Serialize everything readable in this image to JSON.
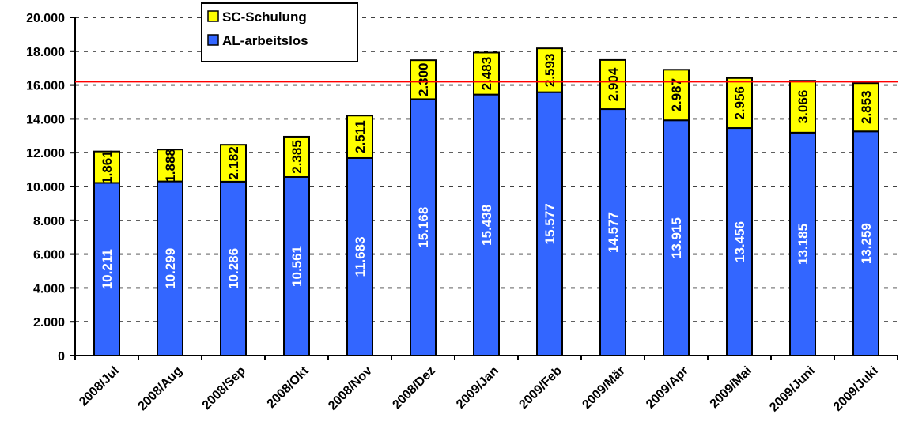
{
  "chart_data": {
    "type": "bar",
    "stacked": true,
    "categories": [
      "2008/Jul",
      "2008/Aug",
      "2008/Sep",
      "2008/Okt",
      "2008/Nov",
      "2008/Dez",
      "2009/Jan",
      "2009/Feb",
      "2009/Mär",
      "2009/Apr",
      "2009/Mai",
      "2009/Juni",
      "2009/Juki"
    ],
    "series": [
      {
        "name": "AL-arbeitslos",
        "color": "#3366ff",
        "label_color": "#ffffff",
        "values": [
          10211,
          10299,
          10286,
          10561,
          11683,
          15168,
          15438,
          15577,
          14577,
          13915,
          13456,
          13185,
          13259
        ],
        "labels": [
          "10.211",
          "10.299",
          "10.286",
          "10.561",
          "11.683",
          "15.168",
          "15.438",
          "15.577",
          "14.577",
          "13.915",
          "13.456",
          "13.185",
          "13.259"
        ]
      },
      {
        "name": "SC-Schulung",
        "color": "#ffff00",
        "label_color": "#000000",
        "values": [
          1861,
          1888,
          2182,
          2385,
          2511,
          2300,
          2483,
          2593,
          2904,
          2987,
          2956,
          3066,
          2853
        ],
        "labels": [
          "1.861",
          "1.888",
          "2.182",
          "2.385",
          "2.511",
          "2.300",
          "2.483",
          "2.593",
          "2.904",
          "2.987",
          "2.956",
          "3.066",
          "2.853"
        ]
      }
    ],
    "legend_order": [
      "SC-Schulung",
      "AL-arbeitslos"
    ],
    "legend_position": "top-left",
    "ylim": [
      0,
      20000
    ],
    "y_ticks": [
      0,
      2000,
      4000,
      6000,
      8000,
      10000,
      12000,
      14000,
      16000,
      18000,
      20000
    ],
    "y_tick_labels": [
      "0",
      "2.000",
      "4.000",
      "6.000",
      "8.000",
      "10.000",
      "12.000",
      "14.000",
      "16.000",
      "18.000",
      "20.000"
    ],
    "reference_line": {
      "value": 16200,
      "color": "#ff0000"
    },
    "grid": "horizontal dashed",
    "title": "",
    "xlabel": "",
    "ylabel": ""
  }
}
